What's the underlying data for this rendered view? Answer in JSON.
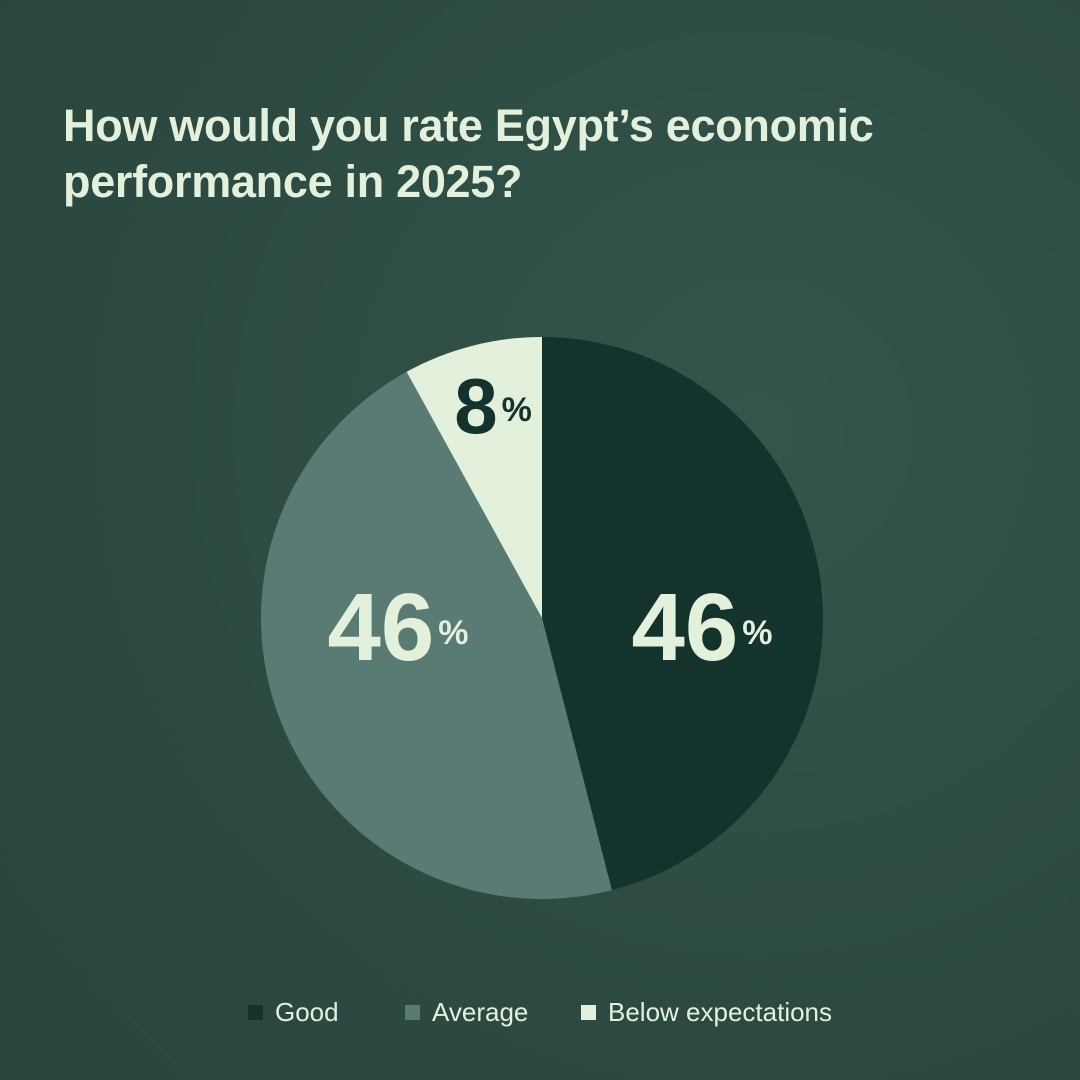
{
  "chart_data": {
    "type": "pie",
    "title": "How would you rate Egypt’s economic performance in 2025?",
    "categories": [
      "Good",
      "Average",
      "Below expectations"
    ],
    "values": [
      46,
      46,
      8
    ],
    "value_labels": [
      "46%",
      "46%",
      "8%"
    ],
    "colors": [
      "#15332d",
      "#5a7b73",
      "#e3f0dc"
    ],
    "label_colors": [
      "#e3f0dc",
      "#e3f0dc",
      "#15332d"
    ],
    "legend": "bottom"
  }
}
